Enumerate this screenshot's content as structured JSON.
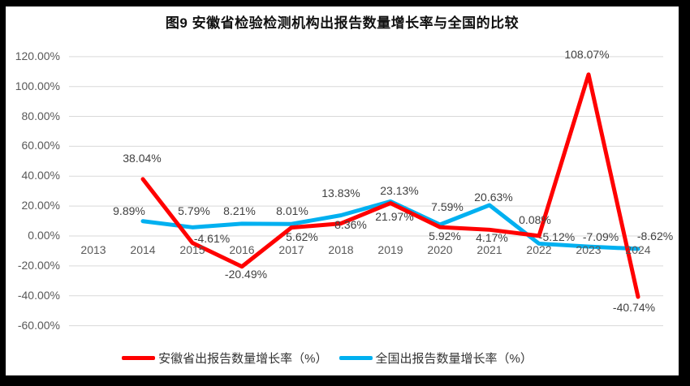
{
  "chart_data": {
    "type": "line",
    "title": "图9 安徽省检验检测机构出报告数量增长率与全国的比较",
    "categories": [
      "2013",
      "2014",
      "2015",
      "2016",
      "2017",
      "2018",
      "2019",
      "2020",
      "2021",
      "2022",
      "2023",
      "2024"
    ],
    "series": [
      {
        "name": "安徽省出报告数量增长率（%）",
        "color": "#FF0000",
        "values": [
          null,
          38.04,
          -4.61,
          -20.49,
          5.62,
          8.36,
          21.97,
          5.92,
          4.17,
          0.08,
          108.07,
          -40.74
        ],
        "labels": [
          null,
          "38.04%",
          "-4.61%",
          "-20.49%",
          "5.62%",
          "8.36%",
          "21.97%",
          "5.92%",
          "4.17%",
          "0.08%",
          "108.07%",
          "-40.74%"
        ]
      },
      {
        "name": "全国出报告数量增长率（%）",
        "color": "#00B0F0",
        "values": [
          null,
          9.89,
          5.79,
          8.21,
          8.01,
          13.83,
          23.13,
          7.59,
          20.63,
          -5.12,
          -7.09,
          -8.62
        ],
        "labels": [
          null,
          "9.89%",
          "5.79%",
          "8.21%",
          "8.01%",
          "13.83%",
          "23.13%",
          "7.59%",
          "20.63%",
          "-5.12%",
          "-7.09%",
          "-8.62%"
        ]
      }
    ],
    "y_ticks": [
      {
        "label": "120.00%",
        "value": 120
      },
      {
        "label": "100.00%",
        "value": 100
      },
      {
        "label": "80.00%",
        "value": 80
      },
      {
        "label": "60.00%",
        "value": 60
      },
      {
        "label": "40.00%",
        "value": 40
      },
      {
        "label": "20.00%",
        "value": 20
      },
      {
        "label": "0.00%",
        "value": 0
      },
      {
        "label": "-20.00%",
        "value": -20
      },
      {
        "label": "-40.00%",
        "value": -40
      },
      {
        "label": "-60.00%",
        "value": -60
      }
    ],
    "ylim": [
      -60,
      120
    ],
    "grid": true,
    "legend_position": "bottom",
    "colors": {
      "grid": "#D9D9D9",
      "axis_text": "#595959",
      "label_text": "#404040",
      "title_text": "#111111",
      "background": "#FFFFFF",
      "frame": "#000000"
    }
  }
}
